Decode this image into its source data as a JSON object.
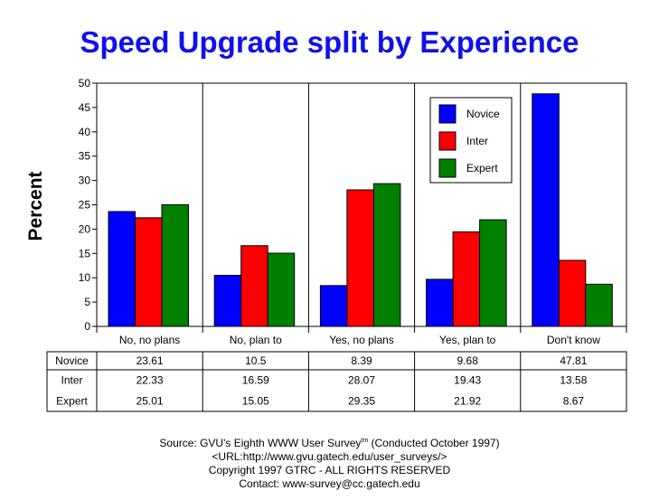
{
  "chart_data": {
    "type": "bar",
    "title": "Speed Upgrade split by Experience",
    "ylabel": "Percent",
    "xlabel": "",
    "ylim": [
      0,
      50
    ],
    "yticks": [
      0,
      5,
      10,
      15,
      20,
      25,
      30,
      35,
      40,
      45,
      50
    ],
    "grid": false,
    "legend_position": "top-right",
    "categories": [
      "No, no plans",
      "No, plan to",
      "Yes, no plans",
      "Yes, plan to",
      "Don't know"
    ],
    "series": [
      {
        "name": "Novice",
        "color": "#0000ff",
        "values": [
          23.61,
          10.5,
          8.39,
          9.68,
          47.81
        ]
      },
      {
        "name": "Inter",
        "color": "#ff0000",
        "values": [
          22.33,
          16.59,
          28.07,
          19.43,
          13.58
        ]
      },
      {
        "name": "Expert",
        "color": "#008000",
        "values": [
          25.01,
          15.05,
          29.35,
          21.92,
          8.67
        ]
      }
    ]
  },
  "source": {
    "line1": "Source: GVU's Eighth WWW User Survey",
    "tm": "tm",
    "line1b": " (Conducted October 1997)",
    "line2": "<URL:http://www.gvu.gatech.edu/user_surveys/>",
    "line3": "Copyright 1997 GTRC - ALL RIGHTS RESERVED",
    "line4": "Contact: www-survey@cc.gatech.edu"
  }
}
